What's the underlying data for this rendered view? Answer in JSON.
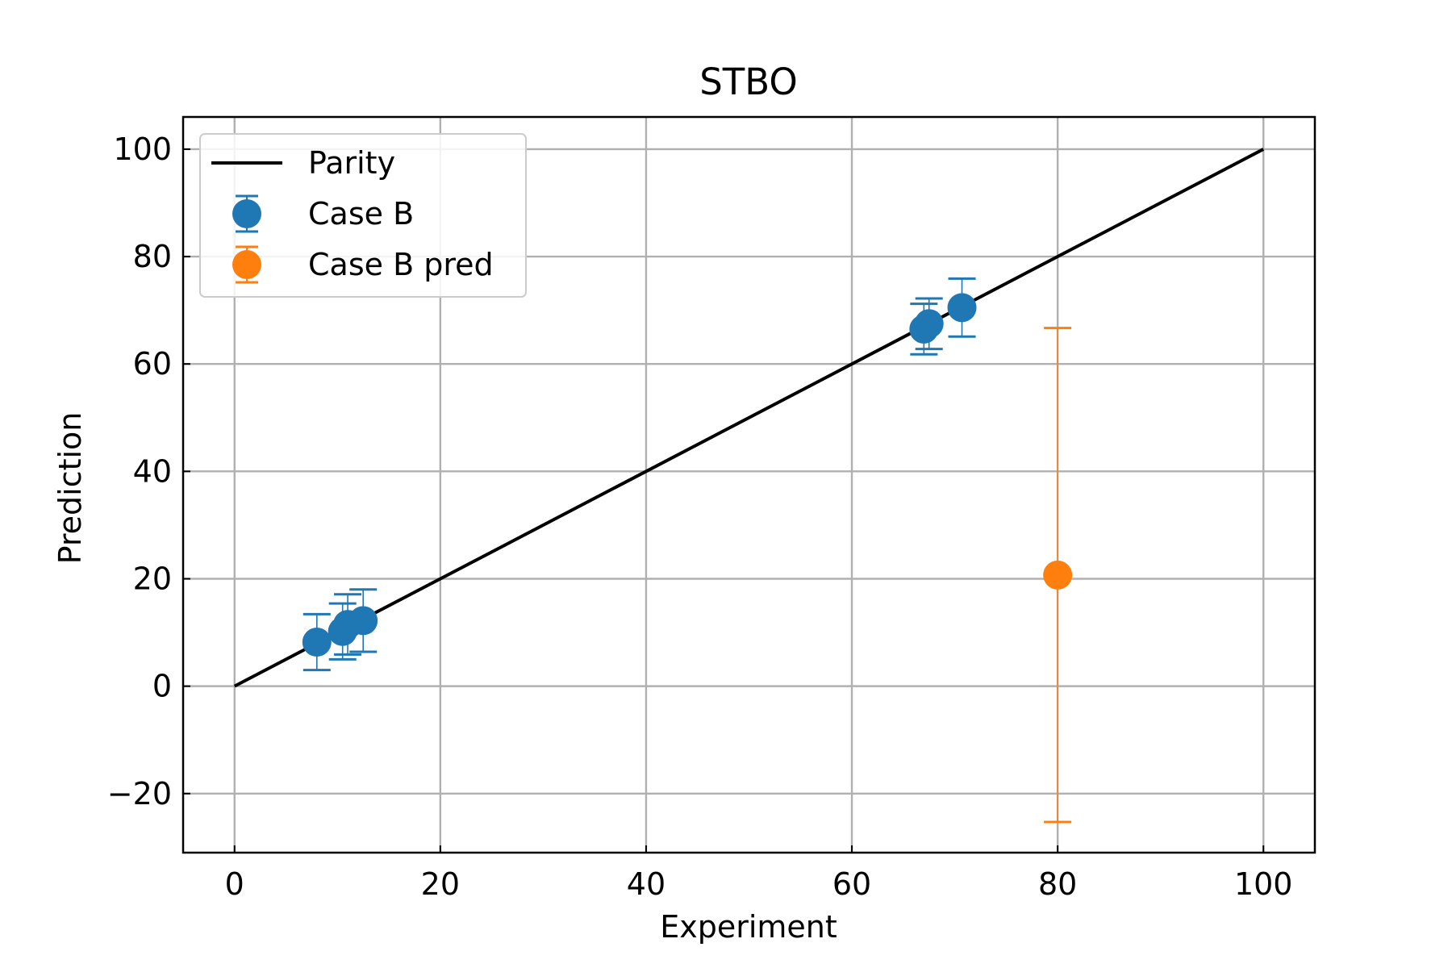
{
  "chart_data": {
    "type": "scatter",
    "title": "STBO",
    "xlabel": "Experiment",
    "ylabel": "Prediction",
    "xlim": [
      -5,
      105
    ],
    "ylim": [
      -31,
      106
    ],
    "xticks": [
      0,
      20,
      40,
      60,
      80,
      100
    ],
    "yticks": [
      -20,
      0,
      20,
      40,
      60,
      80,
      100
    ],
    "xtick_labels": [
      "0",
      "20",
      "40",
      "60",
      "80",
      "100"
    ],
    "ytick_labels": [
      "−20",
      "0",
      "20",
      "40",
      "60",
      "80",
      "100"
    ],
    "grid": true,
    "legend_position": "top-left",
    "parity": {
      "name": "Parity",
      "x": [
        0,
        100
      ],
      "y": [
        0,
        100
      ],
      "color": "#000000"
    },
    "series": [
      {
        "name": "Case B",
        "color": "#1f77b4",
        "points": [
          {
            "x": 8.0,
            "y": 8.2,
            "err": 5.2
          },
          {
            "x": 10.5,
            "y": 10.2,
            "err": 5.2
          },
          {
            "x": 11.0,
            "y": 11.5,
            "err": 5.6
          },
          {
            "x": 12.5,
            "y": 12.2,
            "err": 5.8
          },
          {
            "x": 67.0,
            "y": 66.5,
            "err": 4.7
          },
          {
            "x": 67.5,
            "y": 67.5,
            "err": 4.7
          },
          {
            "x": 70.7,
            "y": 70.5,
            "err": 5.4
          }
        ]
      },
      {
        "name": "Case B pred",
        "color": "#ff7f0e",
        "points": [
          {
            "x": 80.0,
            "y": 20.7,
            "err": 46.0
          }
        ]
      }
    ]
  }
}
